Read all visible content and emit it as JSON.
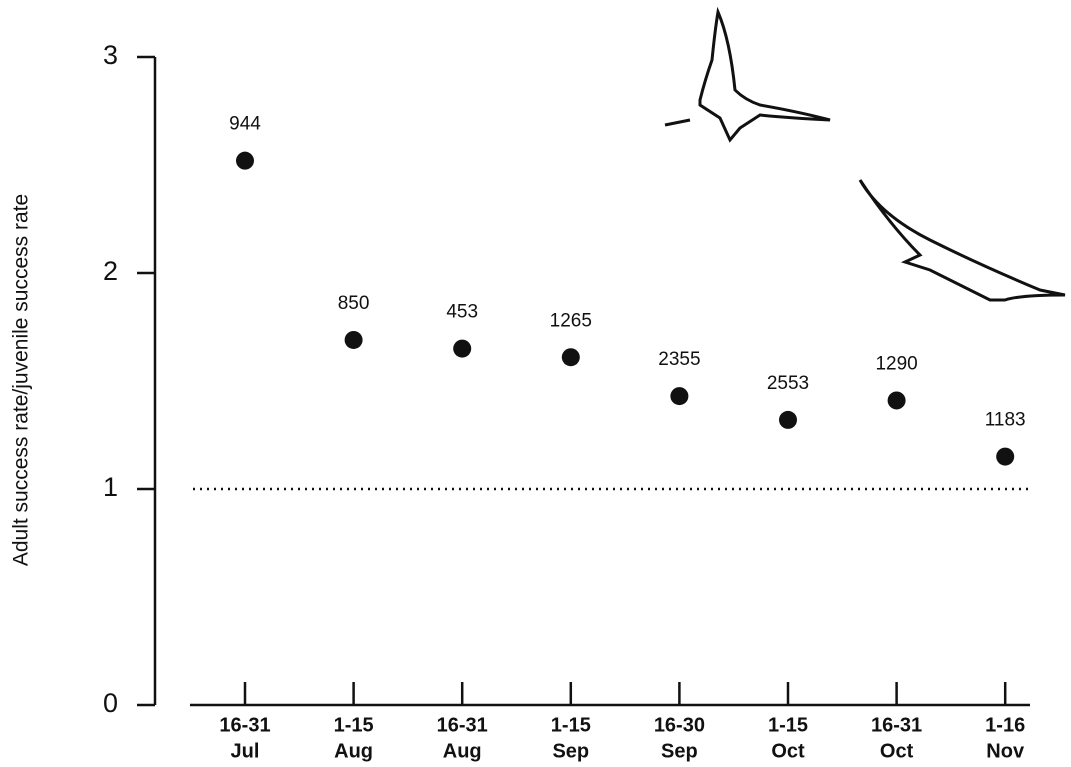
{
  "chart_data": {
    "type": "scatter",
    "y_label": "Adult success rate/juvenile success rate",
    "categories": [
      [
        "16-31",
        "Jul"
      ],
      [
        "1-15",
        "Aug"
      ],
      [
        "16-31",
        "Aug"
      ],
      [
        "1-15",
        "Sep"
      ],
      [
        "16-30",
        "Sep"
      ],
      [
        "1-15",
        "Oct"
      ],
      [
        "16-31",
        "Oct"
      ],
      [
        "1-16",
        "Nov"
      ]
    ],
    "values": [
      2.52,
      1.69,
      1.65,
      1.61,
      1.43,
      1.32,
      1.41,
      1.15
    ],
    "point_labels": [
      "944",
      "850",
      "453",
      "1265",
      "2355",
      "2553",
      "1290",
      "1183"
    ],
    "color": "#111111",
    "reference_line": 1,
    "ylim": [
      0,
      3
    ],
    "yticks": [
      0,
      1,
      2,
      3
    ]
  }
}
